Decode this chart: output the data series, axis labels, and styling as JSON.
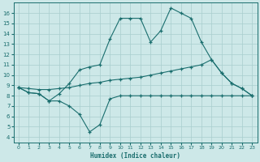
{
  "xlabel": "Humidex (Indice chaleur)",
  "bg_color": "#cde8e8",
  "line_color": "#1a6e6e",
  "xlim": [
    -0.5,
    23.5
  ],
  "ylim": [
    3.5,
    17.0
  ],
  "xticks": [
    0,
    1,
    2,
    3,
    4,
    5,
    6,
    7,
    8,
    9,
    10,
    11,
    12,
    13,
    14,
    15,
    16,
    17,
    18,
    19,
    20,
    21,
    22,
    23
  ],
  "yticks": [
    4,
    5,
    6,
    7,
    8,
    9,
    10,
    11,
    12,
    13,
    14,
    15,
    16
  ],
  "line1_x": [
    0,
    1,
    2,
    3,
    4,
    5,
    6,
    7,
    8,
    9,
    10,
    11,
    12,
    13,
    14,
    15,
    16,
    17,
    18,
    19,
    20,
    21,
    22,
    23
  ],
  "line1_y": [
    8.8,
    8.3,
    8.2,
    7.5,
    7.5,
    7.0,
    6.2,
    4.5,
    5.2,
    7.7,
    8.0,
    8.0,
    8.0,
    8.0,
    8.0,
    8.0,
    8.0,
    8.0,
    8.0,
    8.0,
    8.0,
    8.0,
    8.0,
    8.0
  ],
  "line2_x": [
    0,
    1,
    2,
    3,
    4,
    5,
    6,
    7,
    8,
    9,
    10,
    11,
    12,
    13,
    14,
    15,
    16,
    17,
    18,
    19,
    20,
    21,
    22,
    23
  ],
  "line2_y": [
    8.8,
    8.7,
    8.6,
    8.6,
    8.7,
    8.8,
    9.0,
    9.2,
    9.3,
    9.5,
    9.6,
    9.7,
    9.8,
    10.0,
    10.2,
    10.4,
    10.6,
    10.8,
    11.0,
    11.5,
    10.2,
    9.2,
    8.7,
    8.0
  ],
  "line3_x": [
    0,
    1,
    2,
    3,
    4,
    5,
    6,
    7,
    8,
    9,
    10,
    11,
    12,
    13,
    14,
    15,
    16,
    17,
    18,
    19,
    20,
    21,
    22,
    23
  ],
  "line3_y": [
    8.8,
    8.3,
    8.2,
    7.5,
    8.2,
    9.2,
    10.5,
    10.8,
    11.0,
    13.5,
    15.5,
    15.5,
    15.5,
    13.2,
    14.3,
    16.5,
    16.0,
    15.5,
    13.2,
    11.5,
    10.2,
    9.2,
    8.7,
    8.0
  ]
}
